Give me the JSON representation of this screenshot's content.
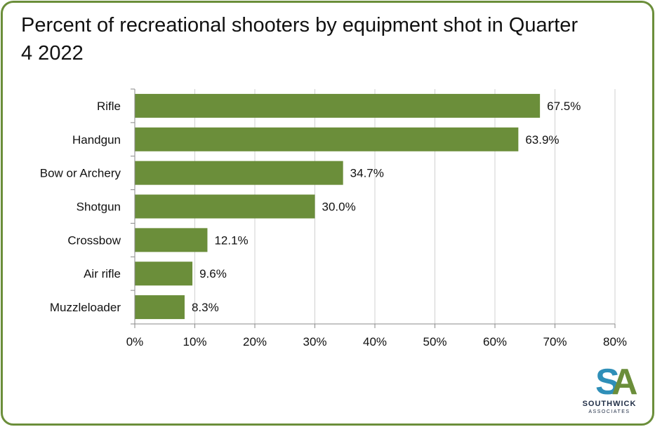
{
  "chart_data": {
    "type": "bar",
    "orientation": "horizontal",
    "title": "Percent of recreational shooters by equipment shot in Quarter 4 2022",
    "categories": [
      "Rifle",
      "Handgun",
      "Bow or Archery",
      "Shotgun",
      "Crossbow",
      "Air rifle",
      "Muzzleloader"
    ],
    "values": [
      67.5,
      63.9,
      34.7,
      30.0,
      12.1,
      9.6,
      8.3
    ],
    "data_labels": [
      "67.5%",
      "63.9%",
      "34.7%",
      "30.0%",
      "12.1%",
      "9.6%",
      "8.3%"
    ],
    "x_ticks": [
      "0%",
      "10%",
      "20%",
      "30%",
      "40%",
      "50%",
      "60%",
      "70%",
      "80%"
    ],
    "xlim": [
      0,
      80
    ],
    "grid": true,
    "bar_color": "#6b8e3a",
    "xlabel": "",
    "ylabel": ""
  },
  "logo": {
    "name": "SOUTHWICK",
    "sub": "ASSOCIATES",
    "colors": {
      "s": "#2f8fb8",
      "a": "#6b8e3a"
    }
  }
}
